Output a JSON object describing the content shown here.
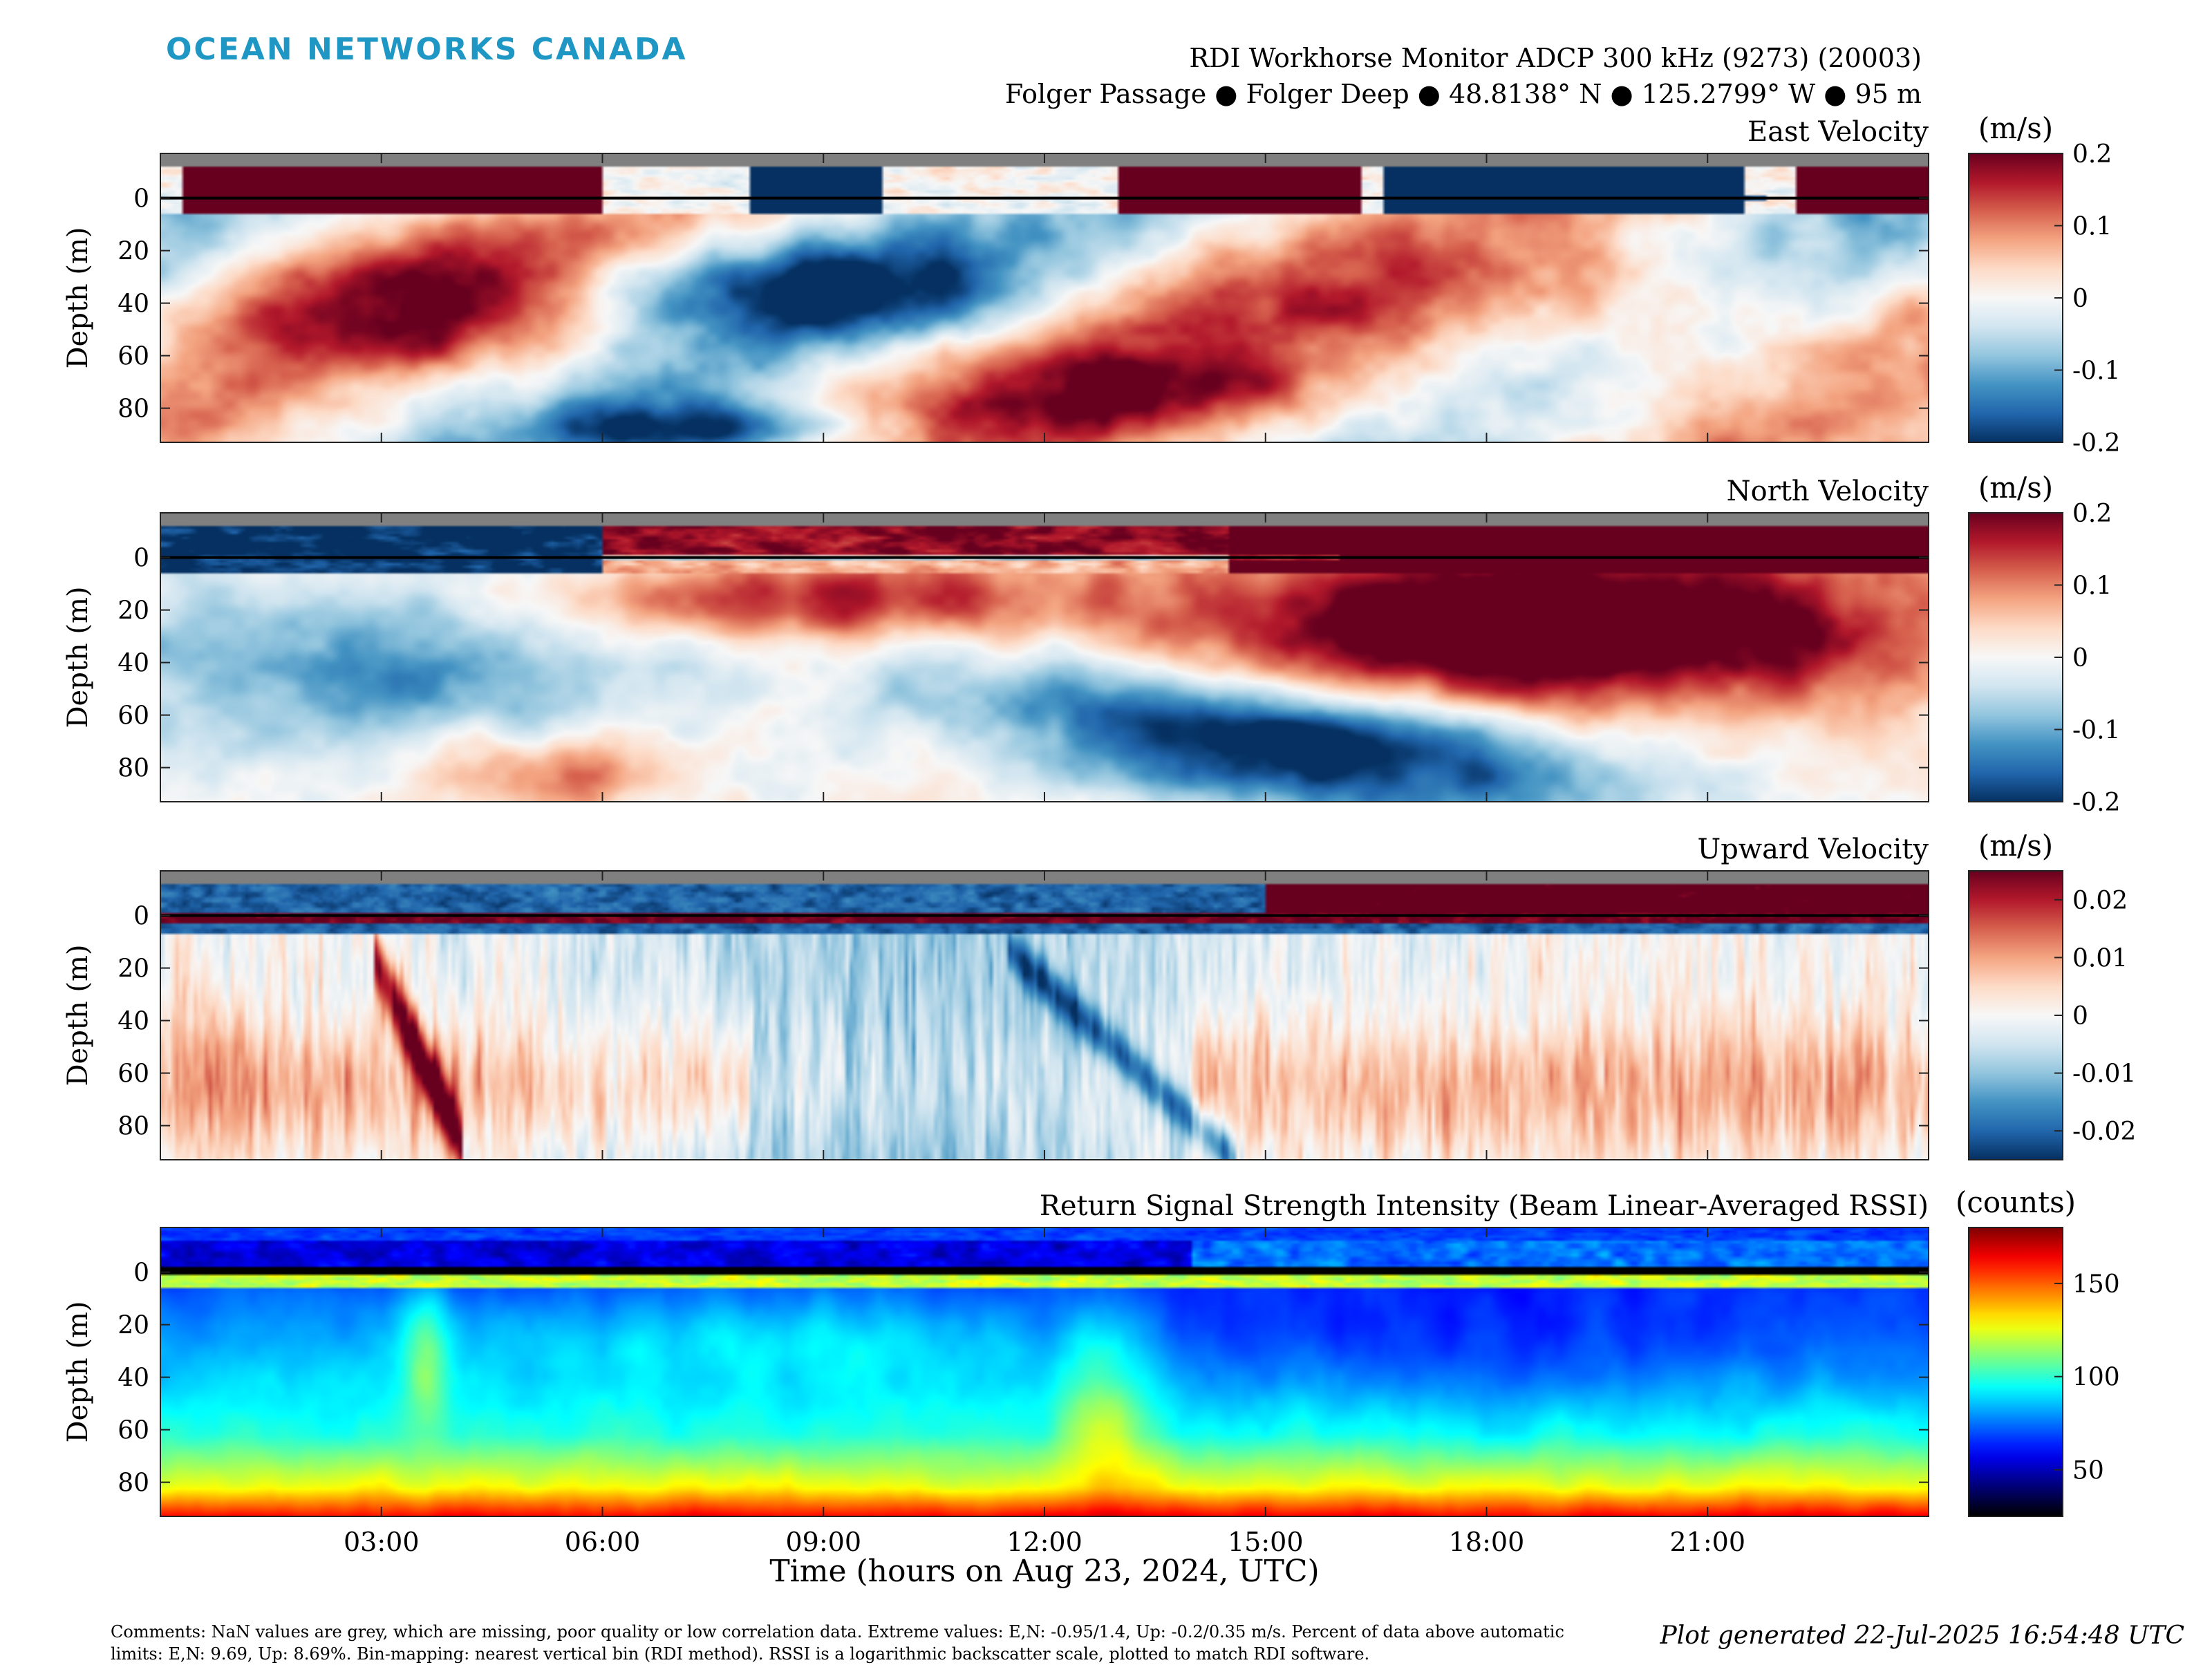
{
  "logo": "OCEAN NETWORKS CANADA",
  "header": {
    "instrument": "RDI Workhorse Monitor ADCP 300 kHz (9273) (20003)",
    "location": "Folger Passage ● Folger Deep ● 48.8138° N ● 125.2799° W ● 95 m"
  },
  "x_axis": {
    "label": "Time (hours on Aug 23, 2024, UTC)",
    "ticks": [
      "03:00",
      "06:00",
      "09:00",
      "12:00",
      "15:00",
      "18:00",
      "21:00"
    ],
    "tick_hours": [
      3,
      6,
      9,
      12,
      15,
      18,
      21
    ],
    "range_hours": [
      0,
      24
    ]
  },
  "colors": {
    "nan_grey": "#808080",
    "logo": "#1f97c4",
    "diverging": [
      "#053061",
      "#2166ac",
      "#4393c3",
      "#92c5de",
      "#d1e5f0",
      "#f7f7f7",
      "#fddbc7",
      "#f4a582",
      "#d6604d",
      "#b2182b",
      "#67001f"
    ],
    "jet": [
      "#000000",
      "#00007f",
      "#0000ff",
      "#007fff",
      "#00ffff",
      "#7fff7f",
      "#ffff00",
      "#ff7f00",
      "#ff0000",
      "#7f0000"
    ]
  },
  "chart_data": [
    {
      "type": "heatmap",
      "title": "East Velocity",
      "ylabel": "Depth (m)",
      "yticks": [
        "0",
        "20",
        "40",
        "60",
        "80"
      ],
      "ylim": [
        -17,
        93
      ],
      "xlim": [
        0,
        24
      ],
      "colorbar": {
        "unit": "(m/s)",
        "ticks": [
          "0.2",
          "0.1",
          "0",
          "-0.1",
          "-0.2"
        ],
        "range": [
          -0.2,
          0.2
        ],
        "colormap": "diverging"
      },
      "pattern": "east"
    },
    {
      "type": "heatmap",
      "title": "North Velocity",
      "ylabel": "Depth (m)",
      "yticks": [
        "0",
        "20",
        "40",
        "60",
        "80"
      ],
      "ylim": [
        -17,
        93
      ],
      "xlim": [
        0,
        24
      ],
      "colorbar": {
        "unit": "(m/s)",
        "ticks": [
          "0.2",
          "0.1",
          "0",
          "-0.1",
          "-0.2"
        ],
        "range": [
          -0.2,
          0.2
        ],
        "colormap": "diverging"
      },
      "pattern": "north"
    },
    {
      "type": "heatmap",
      "title": "Upward Velocity",
      "ylabel": "Depth (m)",
      "yticks": [
        "0",
        "20",
        "40",
        "60",
        "80"
      ],
      "ylim": [
        -17,
        93
      ],
      "xlim": [
        0,
        24
      ],
      "colorbar": {
        "unit": "(m/s)",
        "ticks": [
          "0.02",
          "0.01",
          "0",
          "-0.01",
          "-0.02"
        ],
        "range": [
          -0.025,
          0.025
        ],
        "colormap": "diverging"
      },
      "pattern": "up"
    },
    {
      "type": "heatmap",
      "title": "Return Signal Strength Intensity (Beam Linear-Averaged RSSI)",
      "ylabel": "Depth (m)",
      "yticks": [
        "0",
        "20",
        "40",
        "60",
        "80"
      ],
      "ylim": [
        -17,
        93
      ],
      "xlim": [
        0,
        24
      ],
      "colorbar": {
        "unit": "(counts)",
        "ticks": [
          "150",
          "100",
          "50"
        ],
        "range": [
          25,
          180
        ],
        "colormap": "jet"
      },
      "pattern": "rssi"
    }
  ],
  "comments": "Comments: NaN values are grey, which are missing, poor quality or low correlation data. Extreme values: E,N: -0.95/1.4, Up: -0.2/0.35 m/s. Percent of data above automatic limits: E,N: 9.69, Up: 8.69%. Bin-mapping: nearest vertical bin (RDI method). RSSI is a logarithmic backscatter scale, plotted to match RDI software.",
  "generated": "Plot generated 22-Jul-2025 16:54:48 UTC"
}
